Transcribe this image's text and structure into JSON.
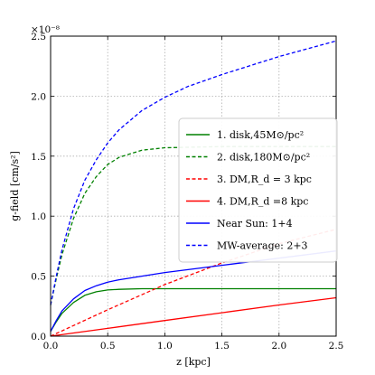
{
  "chart_data": {
    "type": "line",
    "xlabel": "z [kpc]",
    "ylabel": "g-field [cm/s²]",
    "y_multiplier": "×10⁻⁸",
    "xlim": [
      0.0,
      2.5
    ],
    "ylim": [
      0.0,
      2.5
    ],
    "xticks": [
      "0.0",
      "0.5",
      "1.0",
      "1.5",
      "2.0",
      "2.5"
    ],
    "yticks": [
      "0.0",
      "0.5",
      "1.0",
      "1.5",
      "2.0",
      "2.5"
    ],
    "grid": true,
    "legend_position": "right-middle",
    "series": [
      {
        "name": "1. disk,45M⊙/pc²",
        "color": "#008000",
        "dash": "solid",
        "x": [
          0,
          0.05,
          0.1,
          0.2,
          0.3,
          0.4,
          0.5,
          0.6,
          0.8,
          1.0,
          1.5,
          2.0,
          2.5
        ],
        "y": [
          0.04,
          0.12,
          0.19,
          0.28,
          0.34,
          0.37,
          0.385,
          0.39,
          0.395,
          0.395,
          0.395,
          0.395,
          0.395
        ]
      },
      {
        "name": "2. disk,180M⊙/pc²",
        "color": "#008000",
        "dash": "dashed",
        "x": [
          0,
          0.05,
          0.1,
          0.2,
          0.3,
          0.4,
          0.5,
          0.6,
          0.8,
          1.0,
          1.5,
          2.0,
          2.5
        ],
        "y": [
          0.26,
          0.48,
          0.68,
          0.98,
          1.19,
          1.33,
          1.43,
          1.49,
          1.55,
          1.57,
          1.58,
          1.58,
          1.58
        ]
      },
      {
        "name": "3. DM,R_d = 3 kpc",
        "color": "#ff0000",
        "dash": "dashed",
        "x": [
          0,
          0.5,
          1.0,
          1.5,
          2.0,
          2.5
        ],
        "y": [
          0.0,
          0.22,
          0.43,
          0.61,
          0.77,
          0.89
        ]
      },
      {
        "name": "4. DM,R_d =8 kpc",
        "color": "#ff0000",
        "dash": "solid",
        "x": [
          0,
          0.5,
          1.0,
          1.5,
          2.0,
          2.5
        ],
        "y": [
          0.0,
          0.065,
          0.13,
          0.195,
          0.26,
          0.32
        ]
      },
      {
        "name": "Near Sun: 1+4",
        "color": "#0000ff",
        "dash": "solid",
        "x": [
          0,
          0.05,
          0.1,
          0.2,
          0.3,
          0.4,
          0.5,
          0.6,
          0.8,
          1.0,
          1.5,
          2.0,
          2.5
        ],
        "y": [
          0.04,
          0.13,
          0.21,
          0.31,
          0.38,
          0.42,
          0.45,
          0.47,
          0.5,
          0.53,
          0.59,
          0.65,
          0.71
        ]
      },
      {
        "name": "MW-average: 2+3",
        "color": "#0000ff",
        "dash": "dashed",
        "x": [
          0,
          0.05,
          0.1,
          0.2,
          0.3,
          0.4,
          0.5,
          0.6,
          0.8,
          1.0,
          1.2,
          1.5,
          2.0,
          2.5
        ],
        "y": [
          0.26,
          0.5,
          0.72,
          1.06,
          1.3,
          1.47,
          1.61,
          1.72,
          1.88,
          1.99,
          2.08,
          2.18,
          2.33,
          2.46
        ]
      }
    ]
  }
}
